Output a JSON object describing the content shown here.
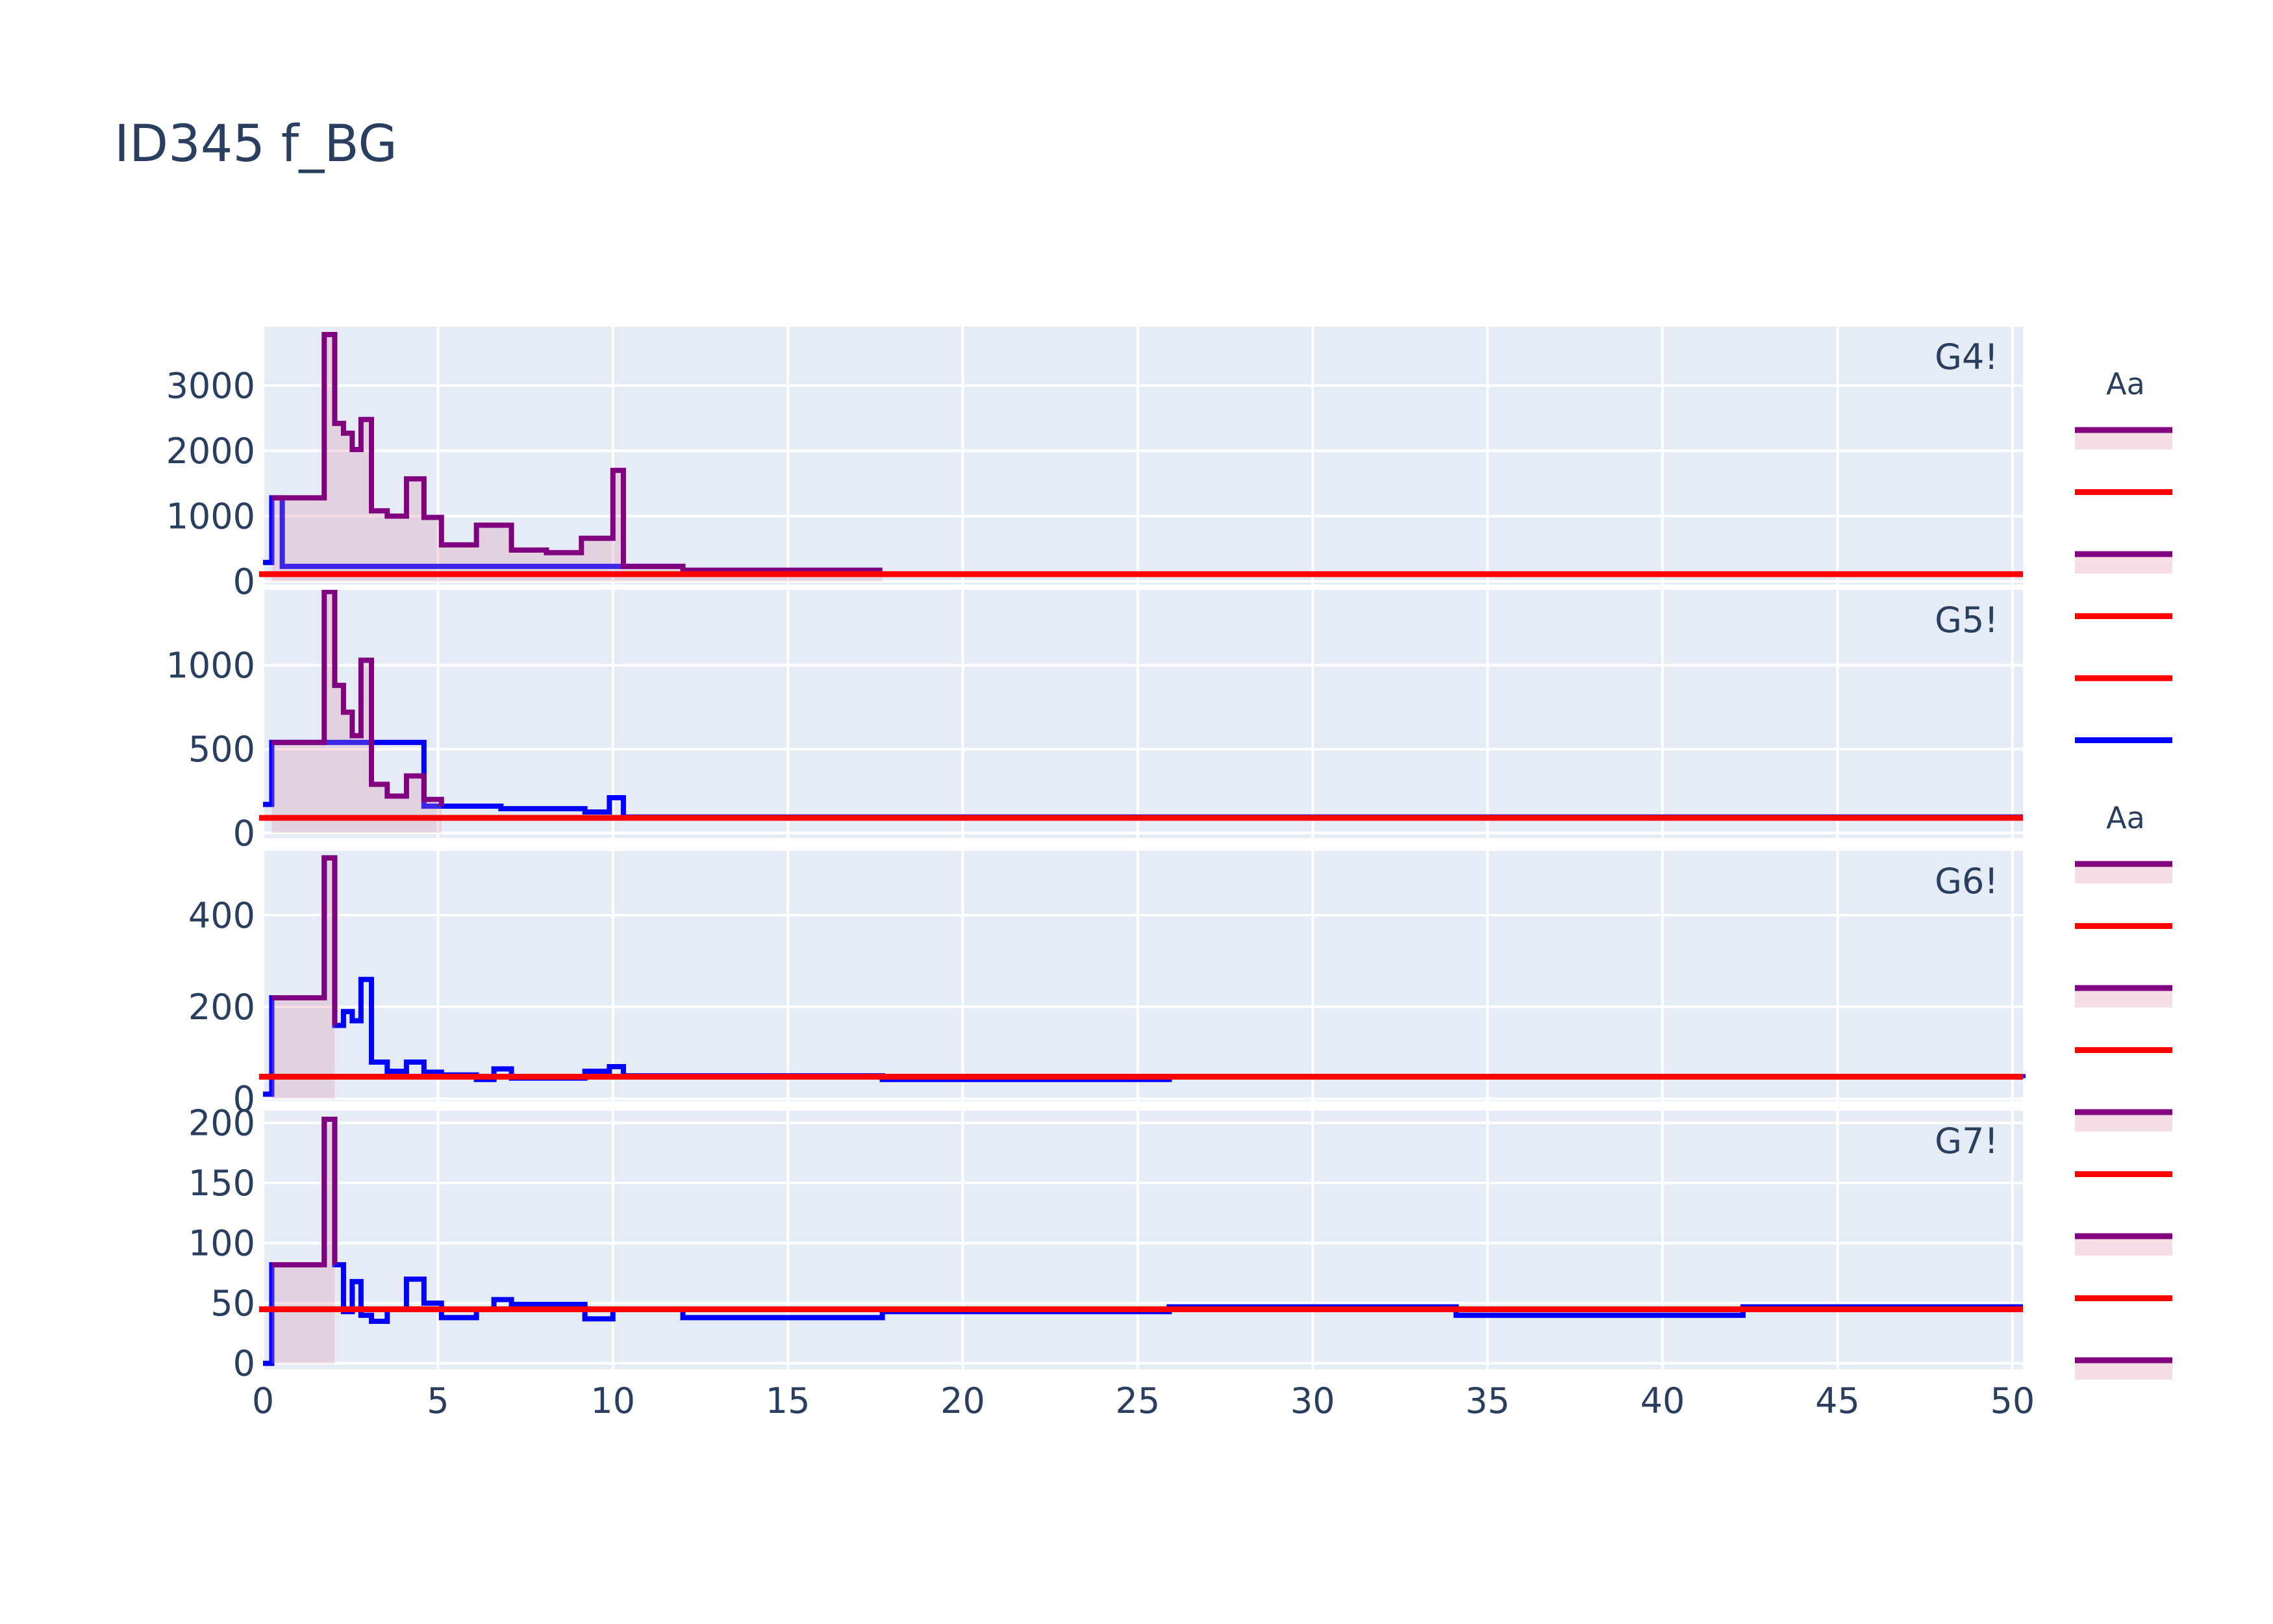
{
  "chart_data": {
    "type": "line",
    "title": "ID345 f_BG",
    "line_shape": "step",
    "x_range": [
      0,
      50.3
    ],
    "x_ticks": [
      0,
      5,
      10,
      15,
      20,
      25,
      30,
      35,
      40,
      45,
      50
    ],
    "panels": [
      {
        "label": "G4!",
        "y_range": [
          -50,
          3900
        ],
        "y_ticks": [
          0,
          1000,
          2000,
          3000
        ],
        "threshold": 110,
        "series": [
          {
            "color": "#0000ff",
            "x": [
              0,
              0.25,
              0.55,
              12,
              17.7
            ],
            "y": [
              290,
              1280,
              230,
              170,
              170
            ]
          },
          {
            "color": "#800080",
            "fill": true,
            "x": [
              0.25,
              1.75,
              2.05,
              2.3,
              2.55,
              2.8,
              3.1,
              3.55,
              4.1,
              4.6,
              5.1,
              6.1,
              7.1,
              8.1,
              9.1,
              10,
              10.3,
              12,
              17.7
            ],
            "y": [
              1280,
              3780,
              2420,
              2270,
              2020,
              2480,
              1080,
              1000,
              1570,
              980,
              560,
              860,
              480,
              440,
              660,
              1700,
              230,
              170,
              170
            ]
          }
        ]
      },
      {
        "label": "G5!",
        "y_range": [
          -30,
          1450
        ],
        "y_ticks": [
          0,
          500,
          1000
        ],
        "threshold": 90,
        "series": [
          {
            "color": "#0000ff",
            "x": [
              0,
              0.25,
              4.6,
              5.1,
              6.8,
              9.2,
              9.9,
              10.3,
              50.3
            ],
            "y": [
              170,
              540,
              160,
              160,
              145,
              125,
              210,
              95,
              95
            ]
          },
          {
            "color": "#800080",
            "fill": true,
            "x": [
              0.25,
              1.75,
              2.05,
              2.3,
              2.55,
              2.8,
              3.1,
              3.55,
              4.1,
              4.6,
              5.1
            ],
            "y": [
              540,
              1440,
              880,
              720,
              580,
              1030,
              290,
              220,
              340,
              200,
              160
            ]
          }
        ]
      },
      {
        "label": "G6!",
        "y_range": [
          -5,
          540
        ],
        "y_ticks": [
          0,
          200,
          400
        ],
        "threshold": 48,
        "series": [
          {
            "color": "#0000ff",
            "x": [
              0,
              0.25,
              1.75,
              2.05,
              2.3,
              2.55,
              2.8,
              3.1,
              3.55,
              4.1,
              4.6,
              5.1,
              6.1,
              6.6,
              7.1,
              9.2,
              9.9,
              10.3,
              17.7,
              25.9,
              50.3
            ],
            "y": [
              10,
              220,
              525,
              160,
              190,
              170,
              260,
              80,
              60,
              80,
              58,
              52,
              42,
              65,
              45,
              60,
              70,
              50,
              42,
              48,
              45
            ]
          },
          {
            "color": "#800080",
            "fill": true,
            "x": [
              0.25,
              1.75,
              2.05
            ],
            "y": [
              220,
              525,
              160
            ]
          }
        ]
      },
      {
        "label": "G7!",
        "y_range": [
          -5,
          210
        ],
        "y_ticks": [
          0,
          50,
          100,
          150,
          200
        ],
        "threshold": 45,
        "series": [
          {
            "color": "#0000ff",
            "x": [
              0,
              0.25,
              1.75,
              2.05,
              2.3,
              2.55,
              2.8,
              3.1,
              3.55,
              4.1,
              4.6,
              5.1,
              6.1,
              6.6,
              7.1,
              9.2,
              10,
              12,
              17.7,
              25.9,
              34.1,
              42.3,
              50.3
            ],
            "y": [
              0,
              82,
              203,
              82,
              43,
              68,
              40,
              35,
              45,
              70,
              50,
              38,
              45,
              53,
              49,
              37,
              45,
              38,
              43,
              47,
              40,
              47,
              47
            ]
          },
          {
            "color": "#800080",
            "fill": true,
            "x": [
              0.25,
              1.75,
              2.05
            ],
            "y": [
              82,
              203,
              82
            ]
          }
        ]
      }
    ],
    "legends": [
      {
        "title": "Aa",
        "items": [
          {
            "color": "#800080",
            "fill": true
          },
          {
            "color": "#ff0000"
          },
          {
            "color": "#800080",
            "fill": true
          },
          {
            "color": "#ff0000"
          },
          {
            "color": "#ff0000"
          },
          {
            "color": "#0000ff"
          }
        ]
      },
      {
        "title": "Aa",
        "items": [
          {
            "color": "#800080",
            "fill": true
          },
          {
            "color": "#ff0000"
          },
          {
            "color": "#800080",
            "fill": true
          },
          {
            "color": "#ff0000"
          },
          {
            "color": "#800080",
            "fill": true
          },
          {
            "color": "#ff0000"
          },
          {
            "color": "#800080",
            "fill": true
          },
          {
            "color": "#ff0000"
          },
          {
            "color": "#800080",
            "fill": true
          }
        ]
      }
    ],
    "colors": {
      "plot_bg": "#e5ecf6",
      "grid": "#ffffff",
      "fill": "rgba(220,140,160,0.28)",
      "threshold": "#ff0000"
    }
  }
}
